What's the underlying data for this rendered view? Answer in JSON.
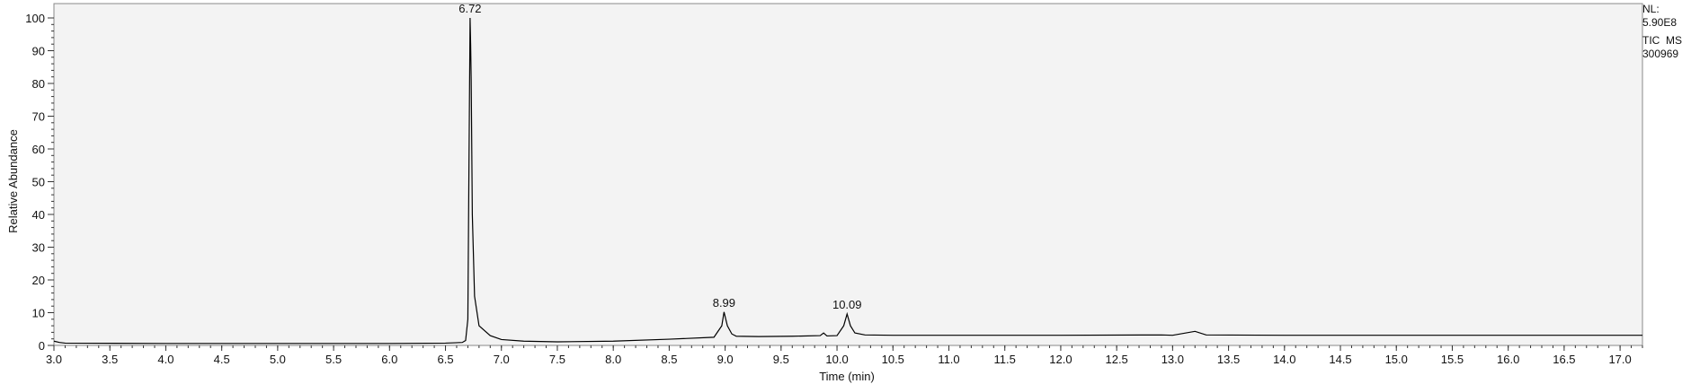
{
  "chart_data": {
    "type": "line",
    "xlabel": "Time (min)",
    "ylabel": "Relative Abundance",
    "xlim": [
      3.0,
      17.2
    ],
    "ylim": [
      0,
      100
    ],
    "x_ticks": [
      "3.0",
      "3.5",
      "4.0",
      "4.5",
      "5.0",
      "5.5",
      "6.0",
      "6.5",
      "7.0",
      "7.5",
      "8.0",
      "8.5",
      "9.0",
      "9.5",
      "10.0",
      "10.5",
      "11.0",
      "11.5",
      "12.0",
      "12.5",
      "13.0",
      "13.5",
      "14.0",
      "14.5",
      "15.0",
      "15.5",
      "16.0",
      "16.5",
      "17.0"
    ],
    "y_ticks": [
      "0",
      "10",
      "20",
      "30",
      "40",
      "50",
      "60",
      "70",
      "80",
      "90",
      "100"
    ],
    "grid": false,
    "line_color": "#000000",
    "plot_background": "#f3f3f3",
    "series": [
      {
        "x": [
          3.0,
          3.05,
          3.1,
          4.0,
          5.0,
          6.0,
          6.5,
          6.65,
          6.68,
          6.7,
          6.71,
          6.72,
          6.725,
          6.73,
          6.74,
          6.76,
          6.8,
          6.9,
          7.0,
          7.2,
          7.5,
          8.0,
          8.5,
          8.9,
          8.97,
          8.99,
          9.02,
          9.06,
          9.1,
          9.3,
          9.6,
          9.85,
          9.88,
          9.91,
          10.0,
          10.06,
          10.09,
          10.12,
          10.16,
          10.25,
          10.5,
          11.0,
          12.0,
          12.9,
          13.0,
          13.2,
          13.3,
          14.0,
          15.0,
          16.0,
          17.0,
          17.2
        ],
        "y": [
          1.3,
          0.9,
          0.7,
          0.6,
          0.6,
          0.6,
          0.7,
          0.9,
          1.5,
          8.0,
          55.0,
          100.0,
          92.0,
          81.0,
          40.0,
          15.0,
          6.0,
          3.0,
          1.8,
          1.3,
          1.1,
          1.3,
          1.9,
          2.5,
          6.0,
          10.2,
          6.0,
          3.5,
          2.8,
          2.7,
          2.8,
          3.0,
          3.8,
          2.9,
          3.0,
          6.0,
          9.6,
          6.0,
          3.8,
          3.2,
          3.1,
          3.1,
          3.1,
          3.2,
          3.1,
          4.3,
          3.2,
          3.1,
          3.1,
          3.1,
          3.1,
          3.1
        ]
      }
    ],
    "annotations": [
      {
        "text": "6.72",
        "x": 6.72,
        "y": 100.0
      },
      {
        "text": "8.99",
        "x": 8.99,
        "y": 10.2
      },
      {
        "text": "10.09",
        "x": 10.09,
        "y": 9.6
      }
    ],
    "info": [
      "NL:",
      "5.90E8",
      "TIC  MS",
      "300969"
    ]
  }
}
